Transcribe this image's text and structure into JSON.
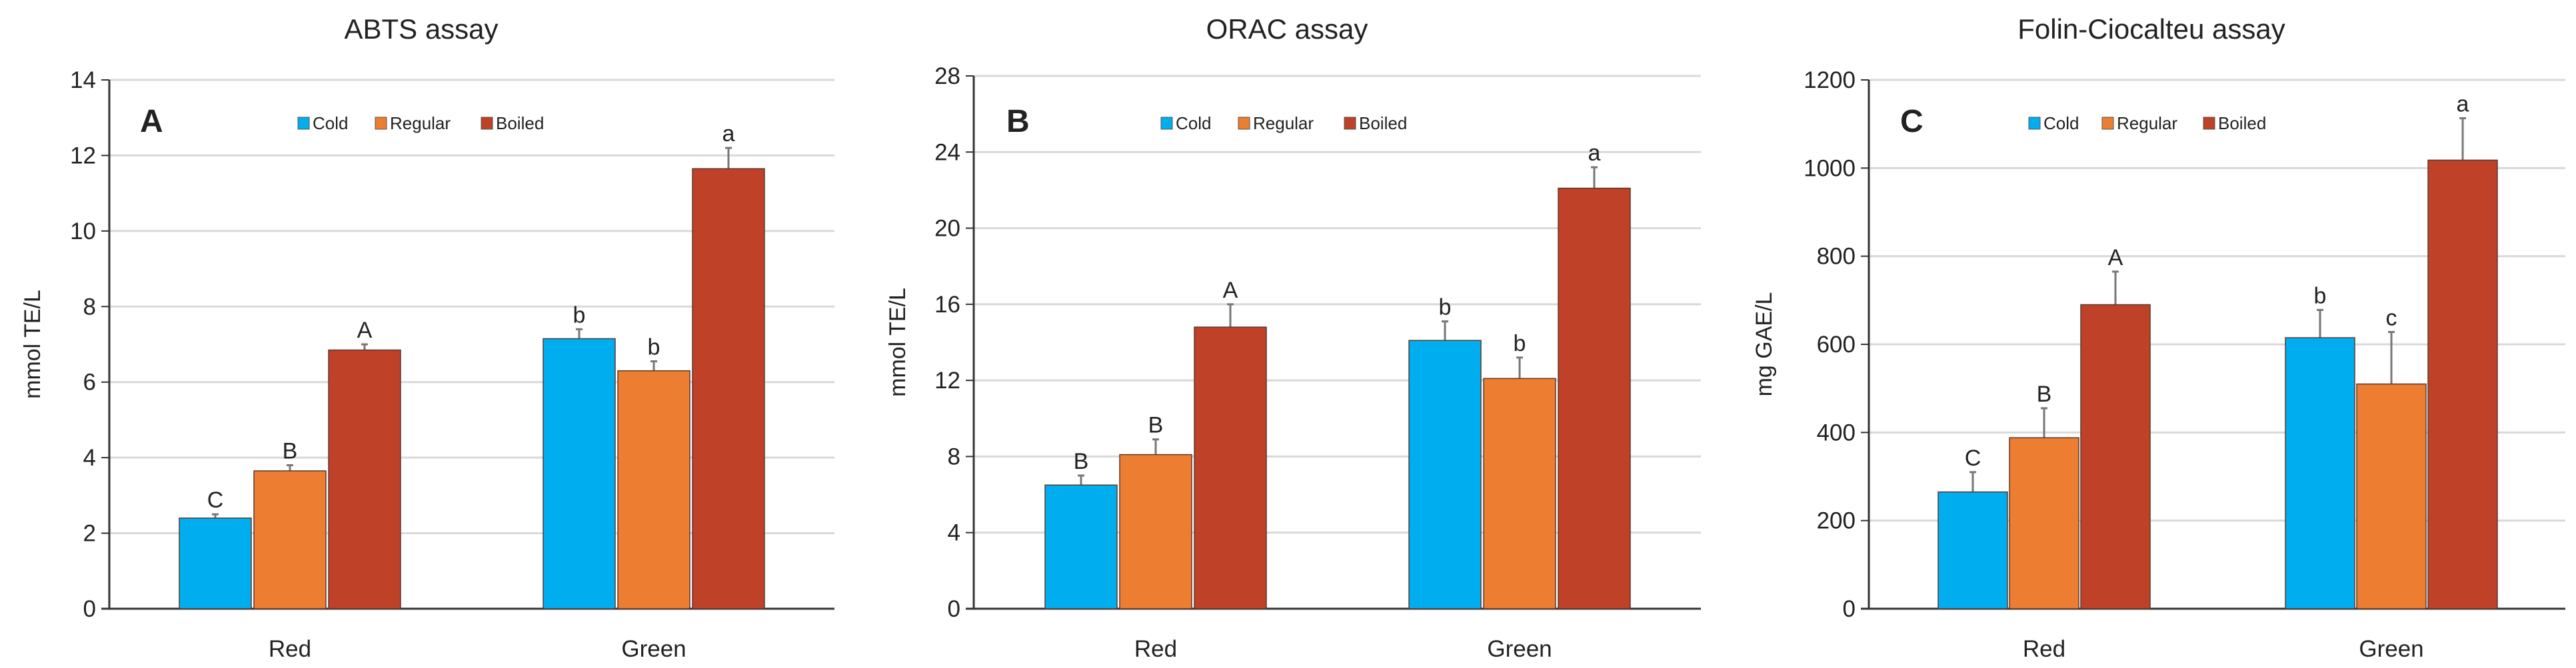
{
  "chart_data": [
    {
      "type": "bar",
      "title": "ABTS assay",
      "panel_label": "A",
      "ylabel": "mmol TE/L",
      "xlabel": "",
      "ylim": [
        0,
        14
      ],
      "yticks": [
        0,
        2,
        4,
        6,
        8,
        10,
        12,
        14
      ],
      "grid": true,
      "legend": "top-center",
      "categories": [
        "Red",
        "Green"
      ],
      "series": [
        {
          "name": "Cold",
          "color": "#00AEEF",
          "values": [
            2.4,
            7.15
          ],
          "error_top": [
            2.5,
            7.4
          ],
          "labels": [
            "C",
            "b"
          ]
        },
        {
          "name": "Regular",
          "color": "#ED7D31",
          "values": [
            3.65,
            6.3
          ],
          "error_top": [
            3.8,
            6.55
          ],
          "labels": [
            "B",
            "b"
          ]
        },
        {
          "name": "Boiled",
          "color": "#BE4128",
          "values": [
            6.85,
            11.65
          ],
          "error_top": [
            7.0,
            12.2
          ],
          "labels": [
            "A",
            "a"
          ]
        }
      ]
    },
    {
      "type": "bar",
      "title": "ORAC assay",
      "panel_label": "B",
      "ylabel": "mmol TE/L",
      "xlabel": "",
      "ylim": [
        0,
        28
      ],
      "yticks": [
        0,
        4,
        8,
        12,
        16,
        20,
        24,
        28
      ],
      "grid": true,
      "legend": "top-center",
      "categories": [
        "Red",
        "Green"
      ],
      "series": [
        {
          "name": "Cold",
          "color": "#00AEEF",
          "values": [
            6.5,
            14.1
          ],
          "error_top": [
            7.0,
            15.1
          ],
          "labels": [
            "B",
            "b"
          ]
        },
        {
          "name": "Regular",
          "color": "#ED7D31",
          "values": [
            8.1,
            12.1
          ],
          "error_top": [
            8.9,
            13.2
          ],
          "labels": [
            "B",
            "b"
          ]
        },
        {
          "name": "Boiled",
          "color": "#BE4128",
          "values": [
            14.8,
            22.1
          ],
          "error_top": [
            16.0,
            23.2
          ],
          "labels": [
            "A",
            "a"
          ]
        }
      ]
    },
    {
      "type": "bar",
      "title": "Folin-Ciocalteu assay",
      "panel_label": "C",
      "ylabel": "mg GAE/L",
      "xlabel": "",
      "ylim": [
        0,
        1200
      ],
      "yticks": [
        0,
        200,
        400,
        600,
        800,
        1000,
        1200
      ],
      "grid": true,
      "legend": "top-center",
      "categories": [
        "Red",
        "Green"
      ],
      "series": [
        {
          "name": "Cold",
          "color": "#00AEEF",
          "values": [
            265,
            615
          ],
          "error_top": [
            310,
            678
          ],
          "labels": [
            "C",
            "b"
          ]
        },
        {
          "name": "Regular",
          "color": "#ED7D31",
          "values": [
            388,
            510
          ],
          "error_top": [
            455,
            628
          ],
          "labels": [
            "B",
            "c"
          ]
        },
        {
          "name": "Boiled",
          "color": "#BE4128",
          "values": [
            690,
            1018
          ],
          "error_top": [
            765,
            1113
          ],
          "labels": [
            "A",
            "a"
          ]
        }
      ]
    }
  ]
}
